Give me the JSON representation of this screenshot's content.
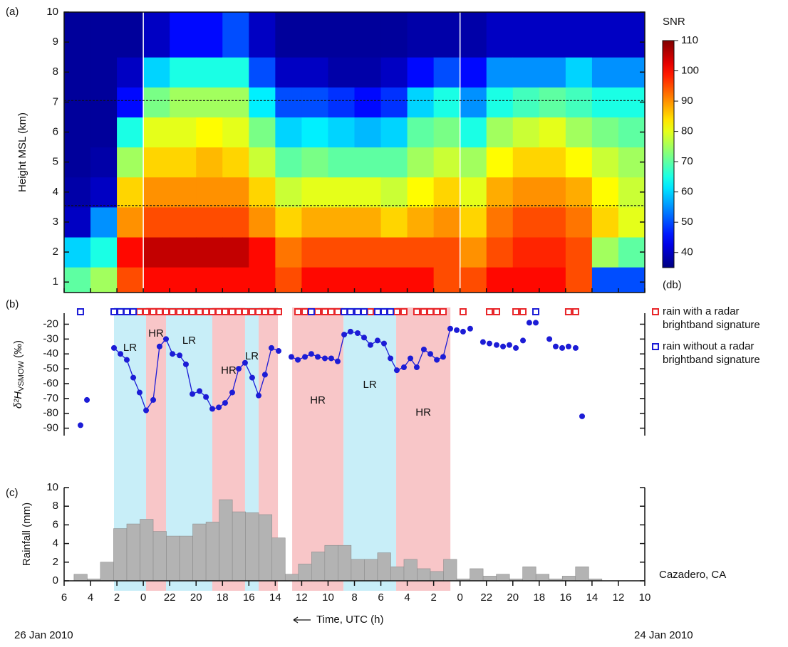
{
  "chart_data": [
    {
      "type": "heatmap",
      "panel_label": "(a)",
      "ylabel": "Height MSL (km)",
      "xlim": [
        54,
        10
      ],
      "ylim": [
        0.65,
        10
      ],
      "yticks": [
        1,
        2,
        3,
        4,
        5,
        6,
        7,
        8,
        9,
        10
      ],
      "x_edges": [
        54,
        52,
        50,
        48,
        46,
        44,
        42,
        40,
        38,
        36,
        34,
        32,
        30,
        28,
        26,
        24,
        22,
        20,
        18,
        16,
        14,
        12,
        10
      ],
      "y_edges": [
        0.65,
        1.5,
        2.5,
        3.5,
        4.5,
        5.5,
        6.5,
        7.5,
        8.5,
        10
      ],
      "z": [
        [
          70,
          60,
          40,
          38,
          37,
          37,
          37,
          37,
          37
        ],
        [
          75,
          65,
          55,
          40,
          38,
          37,
          37,
          37,
          37
        ],
        [
          95,
          100,
          90,
          85,
          75,
          65,
          45,
          40,
          37
        ],
        [
          100,
          105,
          95,
          90,
          85,
          80,
          72,
          60,
          40
        ],
        [
          100,
          105,
          95,
          90,
          85,
          80,
          75,
          65,
          45
        ],
        [
          100,
          105,
          95,
          90,
          87,
          82,
          75,
          65,
          45
        ],
        [
          100,
          105,
          95,
          90,
          85,
          80,
          75,
          65,
          50
        ],
        [
          100,
          100,
          90,
          85,
          78,
          72,
          62,
          50,
          40
        ],
        [
          95,
          92,
          85,
          78,
          70,
          60,
          50,
          40,
          37
        ],
        [
          100,
          95,
          88,
          80,
          72,
          62,
          50,
          40,
          37
        ],
        [
          100,
          95,
          88,
          80,
          70,
          60,
          48,
          38,
          37
        ],
        [
          100,
          95,
          88,
          80,
          70,
          58,
          45,
          38,
          37
        ],
        [
          100,
          95,
          85,
          78,
          70,
          60,
          48,
          40,
          37
        ],
        [
          100,
          95,
          88,
          82,
          75,
          70,
          60,
          45,
          38
        ],
        [
          95,
          95,
          90,
          85,
          78,
          72,
          65,
          50,
          38
        ],
        [
          95,
          90,
          85,
          80,
          75,
          65,
          55,
          45,
          38
        ],
        [
          100,
          95,
          92,
          88,
          82,
          75,
          65,
          55,
          40
        ],
        [
          100,
          98,
          95,
          90,
          85,
          78,
          68,
          55,
          40
        ],
        [
          100,
          98,
          95,
          90,
          85,
          80,
          70,
          55,
          40
        ],
        [
          95,
          95,
          92,
          88,
          82,
          75,
          68,
          60,
          40
        ],
        [
          50,
          75,
          85,
          82,
          78,
          72,
          65,
          55,
          40
        ],
        [
          50,
          70,
          80,
          78,
          75,
          70,
          65,
          55,
          40
        ]
      ],
      "hlines": [
        7.05,
        3.55
      ],
      "vlines": [
        48,
        24
      ],
      "colorbar": {
        "label": "SNR",
        "unit": "(db)",
        "clim": [
          35,
          110
        ],
        "ticks": [
          40,
          50,
          60,
          70,
          80,
          90,
          100,
          110
        ]
      }
    },
    {
      "type": "line",
      "panel_label": "(b)",
      "ylabel": [
        "δ²H",
        "VSMOW",
        " (‰)"
      ],
      "xlim": [
        54,
        10
      ],
      "ylim": [
        -95,
        -3
      ],
      "yticks": [
        -20,
        -30,
        -40,
        -50,
        -60,
        -70,
        -80,
        -90
      ],
      "color": "#1c1cd6",
      "x": [
        52.76,
        null,
        52.27,
        null,
        50.22,
        49.73,
        49.25,
        48.76,
        48.28,
        47.79,
        47.25,
        46.77,
        46.28,
        45.79,
        45.25,
        44.77,
        44.28,
        43.74,
        43.25,
        42.77,
        42.28,
        41.8,
        41.26,
        40.77,
        40.29,
        39.75,
        39.26,
        38.78,
        38.29,
        37.75,
        null,
        36.78,
        36.29,
        35.75,
        35.27,
        34.78,
        34.24,
        33.76,
        33.27,
        32.78,
        32.3,
        31.76,
        31.27,
        30.79,
        30.25,
        29.76,
        29.27,
        28.79,
        28.25,
        27.76,
        27.28,
        26.74,
        26.25,
        25.76,
        25.28,
        24.74,
        null,
        24.25,
        null,
        23.77,
        null,
        23.23,
        null,
        22.26,
        null,
        21.77,
        null,
        21.23,
        null,
        20.74,
        null,
        20.26,
        null,
        19.77,
        null,
        19.23,
        null,
        18.75,
        null,
        18.26,
        null,
        17.23,
        null,
        16.75,
        null,
        16.26,
        null,
        15.78,
        null,
        15.24,
        null,
        14.75
      ],
      "values": [
        -88,
        null,
        -71,
        null,
        -36,
        -40,
        -44,
        -56,
        -66,
        -78,
        -71,
        -35,
        -30,
        -40,
        -41,
        -47,
        -67,
        -65,
        -69,
        -77,
        -76,
        -73,
        -66,
        -50,
        -46,
        -56,
        -68,
        -54,
        -36,
        -38,
        null,
        -42,
        -44,
        -42,
        -40,
        -42,
        -43,
        -43,
        -45,
        -27,
        -25,
        -26,
        -29,
        -34,
        -31,
        -33,
        -43,
        -51,
        -49,
        -43,
        -49,
        -37,
        -40,
        -44,
        -42,
        -23,
        null,
        -24,
        null,
        -25,
        null,
        -23,
        null,
        -32,
        null,
        -33,
        null,
        -34,
        null,
        -35,
        null,
        -34,
        null,
        -36,
        null,
        -31,
        null,
        -19,
        null,
        -19,
        null,
        -30,
        null,
        -35,
        null,
        -36,
        null,
        -35,
        null,
        -36,
        null,
        -82
      ],
      "regions": [
        {
          "x": [
            50.22,
            47.79
          ],
          "label": "LR",
          "color": "#c8eef8"
        },
        {
          "x": [
            47.79,
            46.28
          ],
          "label": "HR",
          "color": "#f8c6c8"
        },
        {
          "x": [
            46.28,
            42.77
          ],
          "label": "LR",
          "color": "#c8eef8"
        },
        {
          "x": [
            42.77,
            40.29
          ],
          "label": "HR",
          "color": "#f8c6c8"
        },
        {
          "x": [
            40.29,
            39.26
          ],
          "label": "LR",
          "color": "#c8eef8"
        },
        {
          "x": [
            39.26,
            37.8
          ],
          "label": null,
          "color": "#f8c6c8"
        },
        {
          "x": [
            36.72,
            32.83
          ],
          "label": "HR",
          "color": "#f8c6c8"
        },
        {
          "x": [
            32.83,
            28.84
          ],
          "label": "LR",
          "color": "#c8eef8"
        },
        {
          "x": [
            28.84,
            24.73
          ],
          "label": "HR",
          "color": "#f8c6c8"
        }
      ],
      "markers": [
        {
          "name": "rain with a radar brightband signature",
          "color": "#e8262a",
          "x": [
            48.28,
            47.79,
            47.25,
            46.77,
            46.28,
            45.79,
            45.25,
            44.77,
            44.28,
            43.74,
            43.25,
            42.77,
            42.28,
            41.8,
            41.26,
            40.77,
            40.29,
            39.75,
            39.26,
            38.78,
            38.29,
            37.75,
            36.29,
            35.75,
            34.78,
            34.24,
            33.76,
            33.27,
            30.79,
            28.79,
            28.25,
            27.28,
            26.74,
            26.25,
            25.76,
            25.28,
            23.77,
            21.77,
            21.23,
            19.77,
            19.23,
            15.78,
            15.24
          ]
        },
        {
          "name": "rain without a radar brightband signature",
          "color": "#1c1cd6",
          "x": [
            52.76,
            50.22,
            49.73,
            49.25,
            48.76,
            35.27,
            32.78,
            32.3,
            31.76,
            31.27,
            30.25,
            29.76,
            29.27,
            18.26
          ]
        }
      ]
    },
    {
      "type": "histogram",
      "panel_label": "(c)",
      "ylabel": "Rainfall (mm)",
      "xlabel": "Time, UTC (h)",
      "annotation": "Cazadero, CA",
      "start_date": "26 Jan 2010",
      "end_date": "24 Jan 2010",
      "xlim": [
        54,
        10
      ],
      "ylim": [
        0,
        10
      ],
      "yticks": [
        0,
        2,
        4,
        6,
        8,
        10
      ],
      "color": "#b3b3b3",
      "xticks": [
        {
          "value": 54,
          "label": "6"
        },
        {
          "value": 52,
          "label": "4"
        },
        {
          "value": 50,
          "label": "2"
        },
        {
          "value": 48,
          "label": "0"
        },
        {
          "value": 46,
          "label": "22"
        },
        {
          "value": 44,
          "label": "20"
        },
        {
          "value": 42,
          "label": "18"
        },
        {
          "value": 40,
          "label": "16"
        },
        {
          "value": 38,
          "label": "14"
        },
        {
          "value": 36,
          "label": "12"
        },
        {
          "value": 34,
          "label": "10"
        },
        {
          "value": 32,
          "label": "8"
        },
        {
          "value": 30,
          "label": "6"
        },
        {
          "value": 28,
          "label": "4"
        },
        {
          "value": 26,
          "label": "2"
        },
        {
          "value": 24,
          "label": "0"
        },
        22,
        20,
        18,
        16,
        14,
        12,
        10
      ],
      "bins": [
        53.25,
        52.25,
        51.25,
        50.25,
        49.25,
        48.25,
        47.25,
        46.25,
        45.25,
        44.25,
        43.25,
        42.25,
        41.25,
        40.25,
        39.25,
        38.25,
        37.25,
        36.25,
        35.25,
        34.25,
        33.25,
        32.25,
        31.25,
        30.25,
        29.25,
        28.25,
        27.25,
        26.25,
        25.25,
        24.25,
        23.25,
        22.25,
        21.25,
        20.25,
        19.25,
        18.25,
        17.25,
        16.25,
        15.25,
        14.25,
        13.25
      ],
      "values": [
        0.7,
        0.2,
        2.0,
        5.6,
        6.1,
        6.6,
        5.3,
        4.8,
        4.8,
        6.1,
        6.3,
        8.7,
        7.4,
        7.3,
        7.1,
        4.6,
        0.7,
        1.8,
        3.1,
        3.8,
        3.8,
        2.3,
        2.3,
        3.0,
        1.5,
        2.3,
        1.3,
        1.0,
        2.3,
        0.2,
        1.3,
        0.5,
        0.7,
        0.2,
        1.5,
        0.7,
        0.2,
        0.5,
        1.5,
        0.2
      ]
    }
  ]
}
